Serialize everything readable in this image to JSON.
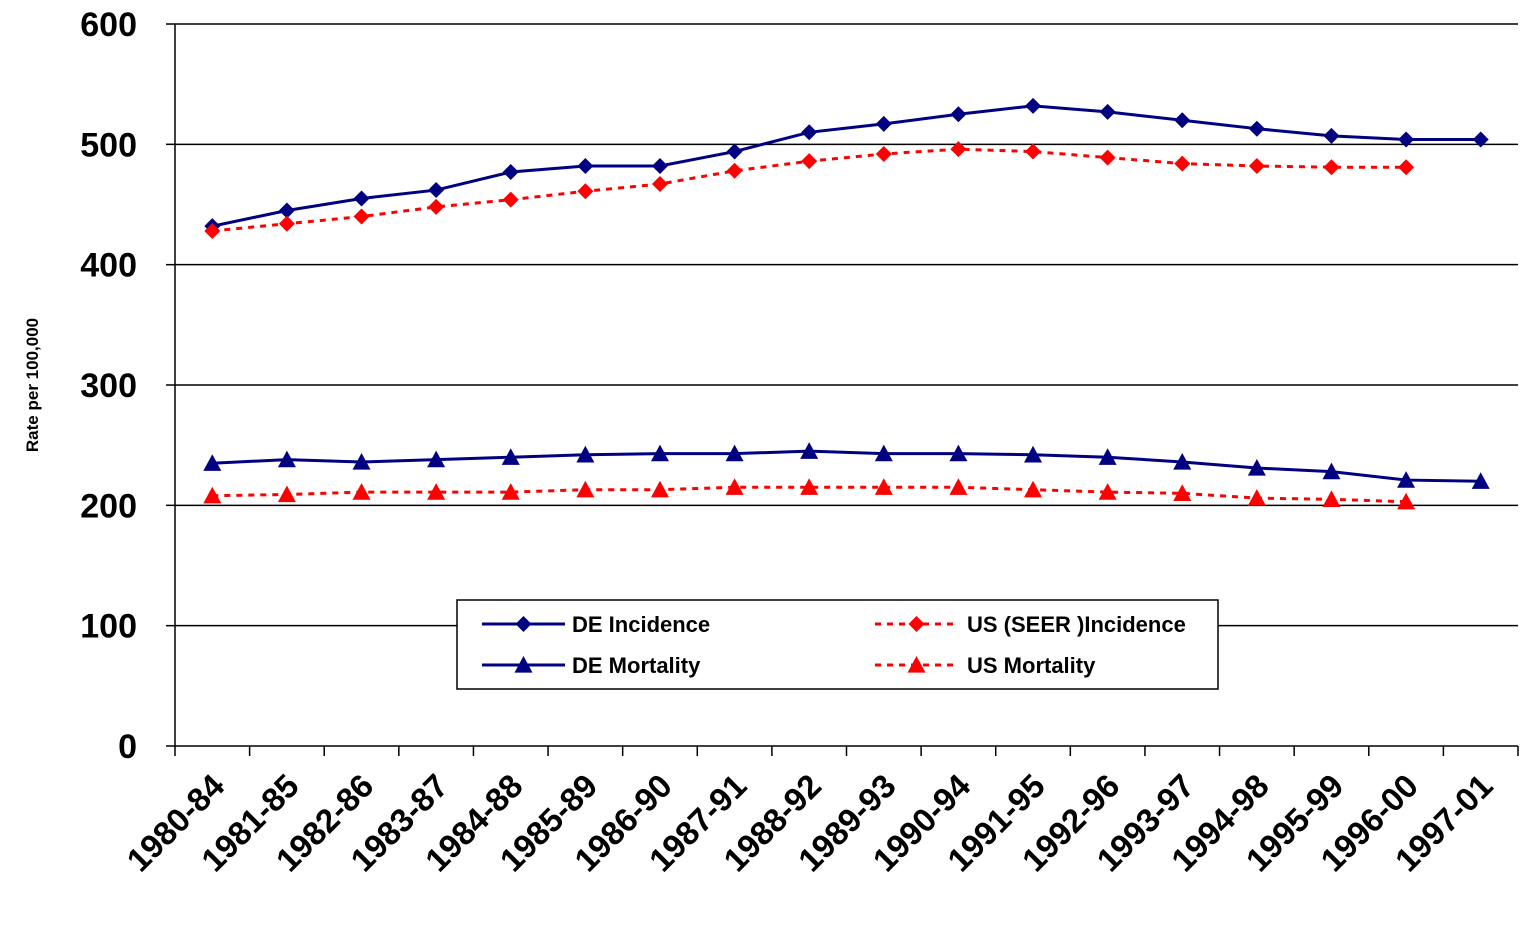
{
  "chart_data": {
    "type": "line",
    "title": "",
    "xlabel": "",
    "ylabel": "Rate per 100,000",
    "ylim": [
      0,
      600
    ],
    "yticks": [
      0,
      100,
      200,
      300,
      400,
      500,
      600
    ],
    "grid": "horizontal",
    "legend_position": "bottom-center",
    "categories": [
      "1980-84",
      "1981-85",
      "1982-86",
      "1983-87",
      "1984-88",
      "1985-89",
      "1986-90",
      "1987-91",
      "1988-92",
      "1989-93",
      "1990-94",
      "1991-95",
      "1992-96",
      "1993-97",
      "1994-98",
      "1995-99",
      "1996-00",
      "1997-01"
    ],
    "series": [
      {
        "name": "DE Incidence",
        "color": "#000080",
        "line": "solid",
        "marker": "diamond",
        "values": [
          432,
          445,
          455,
          462,
          477,
          482,
          482,
          494,
          510,
          517,
          525,
          532,
          527,
          520,
          513,
          507,
          504,
          504
        ]
      },
      {
        "name": "US (SEER )Incidence",
        "color": "#FF0000",
        "line": "dotted",
        "marker": "diamond",
        "values": [
          428,
          434,
          440,
          448,
          454,
          461,
          467,
          478,
          486,
          492,
          496,
          494,
          489,
          484,
          482,
          481,
          481,
          null
        ]
      },
      {
        "name": "DE Mortality",
        "color": "#000080",
        "line": "solid",
        "marker": "triangle",
        "values": [
          235,
          238,
          236,
          238,
          240,
          242,
          243,
          243,
          245,
          243,
          243,
          242,
          240,
          236,
          231,
          228,
          221,
          220
        ]
      },
      {
        "name": "US Mortality",
        "color": "#FF0000",
        "line": "dotted",
        "marker": "triangle",
        "values": [
          208,
          209,
          211,
          211,
          211,
          213,
          213,
          215,
          215,
          215,
          215,
          213,
          211,
          210,
          206,
          205,
          203,
          null
        ]
      }
    ]
  }
}
